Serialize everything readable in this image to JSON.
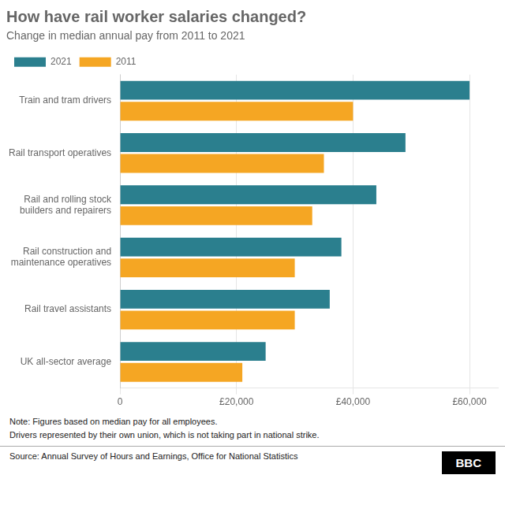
{
  "chart_data": {
    "type": "bar",
    "orientation": "horizontal",
    "title": "How have rail worker salaries changed?",
    "subtitle": "Change in median annual pay from 2011 to 2021",
    "categories": [
      "UK all-sector average",
      "Rail travel assistants",
      "Rail construction and\nmaintenance operatives",
      "Rail and rolling stock\nbuilders and repairers",
      "Rail transport operatives",
      "Train and tram drivers"
    ],
    "series": [
      {
        "name": "2021",
        "color": "#2B7F8E",
        "values": [
          25000,
          36000,
          38000,
          44000,
          49000,
          60000
        ]
      },
      {
        "name": "2011",
        "color": "#F5A623",
        "values": [
          21000,
          30000,
          30000,
          33000,
          35000,
          40000
        ]
      }
    ],
    "xlim": [
      0,
      65000
    ],
    "xticks": [
      0,
      {
        "value": 20000,
        "label": "£20,000"
      },
      {
        "value": 40000,
        "label": "£40,000"
      },
      {
        "value": 60000,
        "label": "£60,000"
      }
    ],
    "grid": true,
    "legend": "top-left",
    "note": "Note: Figures based on median pay for all employees.\nDrivers represented by their own union, which is not taking part in national strike.",
    "source": "Source: Annual Survey of Hours and Earnings, Office for National Statistics",
    "logo": "BBC"
  }
}
